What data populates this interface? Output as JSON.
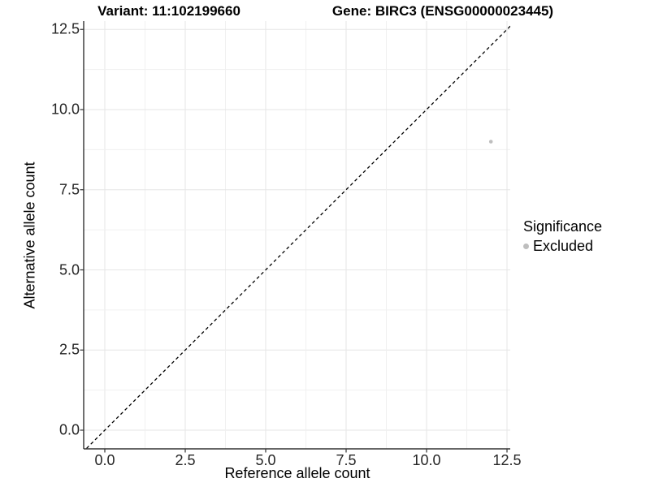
{
  "header": {
    "variant_title": "Variant: 11:102199660",
    "gene_title": "Gene: BIRC3 (ENSG00000023445)"
  },
  "chart_data": {
    "type": "scatter",
    "xlabel": "Reference allele count",
    "ylabel": "Alternative allele count",
    "xlim": [
      -0.66,
      13.16
    ],
    "ylim": [
      -0.6,
      12.77
    ],
    "x_axis": {
      "tick_values": [
        0,
        2.5,
        5,
        7.5,
        10,
        12.5
      ],
      "tick_labels": [
        "0.0",
        "2.5",
        "5.0",
        "7.5",
        "10.0",
        "12.5"
      ]
    },
    "y_axis": {
      "tick_values": [
        0,
        2.5,
        5,
        7.5,
        10,
        12.5
      ],
      "tick_labels": [
        "0.0",
        "2.5",
        "5.0",
        "7.5",
        "10.0",
        "12.5"
      ]
    },
    "grid": {
      "minor_step": 1.25,
      "major_step": 2.5,
      "on": true
    },
    "identity_line": {
      "equation": "y = x",
      "style": "dashed",
      "color": "#000000"
    },
    "series": [
      {
        "name": "Excluded",
        "color": "#bebebe",
        "points": [
          {
            "x": 12,
            "y": 9
          }
        ]
      }
    ],
    "legend": {
      "title": "Significance",
      "position": "right",
      "items": [
        {
          "label": "Excluded",
          "color": "#bebebe"
        }
      ]
    }
  }
}
